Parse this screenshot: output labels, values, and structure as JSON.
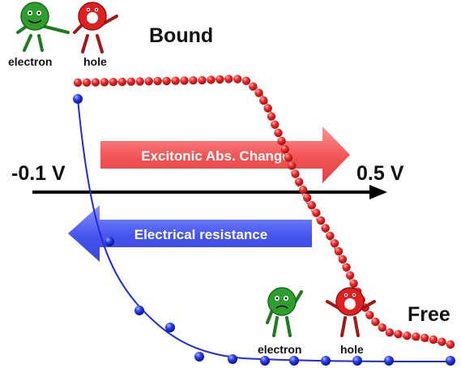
{
  "labels": {
    "bound": "Bound",
    "free": "Free",
    "left_voltage": "-0.1 V",
    "right_voltage": "0.5 V",
    "electron_top": "electron",
    "hole_top": "hole",
    "electron_bottom": "electron",
    "hole_bottom": "hole"
  },
  "arrows": {
    "excitonic": "Excitonic Abs. Change",
    "resistance": "Electrical resistance"
  },
  "colors": {
    "red_series": "#e82020",
    "blue_series": "#1a2fd6",
    "axis": "#000000",
    "electron_character": "#2e9e2e",
    "hole_character": "#e02020"
  },
  "icons": [
    "electron-character-icon",
    "hole-character-icon"
  ],
  "series": {
    "excitonic_points": 60,
    "resistance_points": 12
  }
}
